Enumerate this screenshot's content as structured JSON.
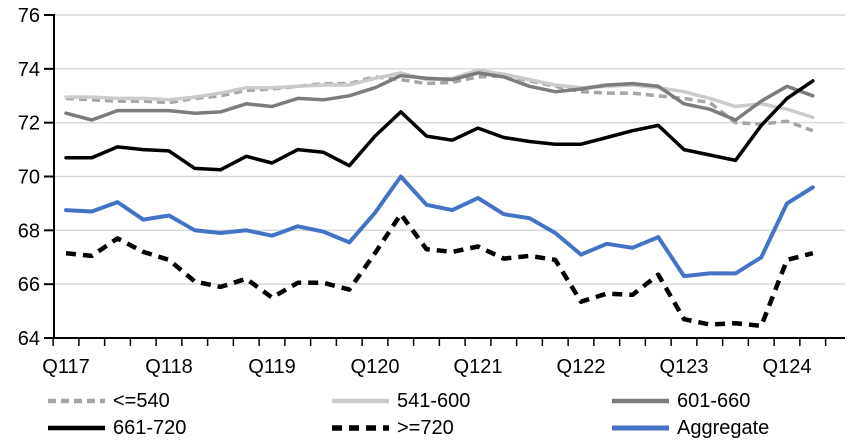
{
  "chart_data": {
    "type": "line",
    "title": "",
    "xlabel": "",
    "ylabel": "",
    "ylim": [
      64,
      76
    ],
    "yticks": [
      64,
      66,
      68,
      70,
      72,
      74,
      76
    ],
    "grid": "horizontal",
    "legend_position": "bottom",
    "x_labels": [
      "Q117",
      "Q118",
      "Q119",
      "Q120",
      "Q121",
      "Q122",
      "Q123",
      "Q124"
    ],
    "x_label_every": 4,
    "x_point_count": 30,
    "colors": {
      "gridline": "#d9d9d9",
      "axis": "#000000",
      "accent_blue": "#4472c4",
      "light_gray": "#cbcbcb",
      "mid_gray": "#a5a5a5",
      "dark_gray": "#7c7c7c"
    },
    "series": [
      {
        "name": "<=540",
        "color": "#a5a5a5",
        "dash": "8 5",
        "width": 3.5,
        "values": [
          72.9,
          72.85,
          72.8,
          72.8,
          72.75,
          72.9,
          73.0,
          73.2,
          73.25,
          73.35,
          73.45,
          73.45,
          73.7,
          73.6,
          73.45,
          73.5,
          73.7,
          73.75,
          73.55,
          73.35,
          73.15,
          73.1,
          73.1,
          73.0,
          72.9,
          72.75,
          72.0,
          71.95,
          72.05,
          71.7
        ]
      },
      {
        "name": "541-600",
        "color": "#cbcbcb",
        "dash": "",
        "width": 3.5,
        "values": [
          72.95,
          72.95,
          72.9,
          72.9,
          72.85,
          72.95,
          73.1,
          73.3,
          73.3,
          73.35,
          73.4,
          73.4,
          73.65,
          73.85,
          73.6,
          73.65,
          73.95,
          73.8,
          73.6,
          73.4,
          73.3,
          73.35,
          73.4,
          73.3,
          73.15,
          72.9,
          72.6,
          72.7,
          72.5,
          72.2
        ]
      },
      {
        "name": "601-660",
        "color": "#7c7c7c",
        "dash": "",
        "width": 3.5,
        "values": [
          72.35,
          72.1,
          72.45,
          72.45,
          72.45,
          72.35,
          72.4,
          72.7,
          72.6,
          72.9,
          72.85,
          73.0,
          73.3,
          73.75,
          73.65,
          73.6,
          73.85,
          73.7,
          73.35,
          73.15,
          73.25,
          73.4,
          73.45,
          73.35,
          72.7,
          72.5,
          72.1,
          72.8,
          73.35,
          73.0
        ]
      },
      {
        "name": "661-720",
        "color": "#000000",
        "dash": "",
        "width": 3.5,
        "values": [
          70.7,
          70.7,
          71.1,
          71.0,
          70.95,
          70.3,
          70.25,
          70.75,
          70.5,
          71.0,
          70.9,
          70.4,
          71.5,
          72.4,
          71.5,
          71.35,
          71.8,
          71.45,
          71.3,
          71.2,
          71.2,
          71.45,
          71.7,
          71.9,
          71.0,
          70.8,
          70.6,
          71.9,
          72.9,
          73.55
        ]
      },
      {
        "name": ">=720",
        "color": "#000000",
        "dash": "10 7",
        "width": 4.5,
        "values": [
          67.15,
          67.05,
          67.7,
          67.2,
          66.9,
          66.1,
          65.9,
          66.2,
          65.5,
          66.05,
          66.05,
          65.8,
          67.15,
          68.6,
          67.3,
          67.2,
          67.4,
          66.95,
          67.05,
          66.9,
          65.35,
          65.65,
          65.6,
          66.35,
          64.7,
          64.5,
          64.55,
          64.45,
          66.9,
          67.15
        ]
      },
      {
        "name": "Aggregate",
        "color": "#4472c4",
        "dash": "",
        "width": 4,
        "values": [
          68.75,
          68.7,
          69.05,
          68.4,
          68.55,
          68.0,
          67.9,
          68.0,
          67.8,
          68.15,
          67.95,
          67.55,
          68.65,
          70.0,
          68.95,
          68.75,
          69.2,
          68.6,
          68.45,
          67.9,
          67.1,
          67.5,
          67.35,
          67.75,
          66.3,
          66.4,
          66.4,
          67.0,
          69.0,
          69.6
        ]
      }
    ]
  }
}
